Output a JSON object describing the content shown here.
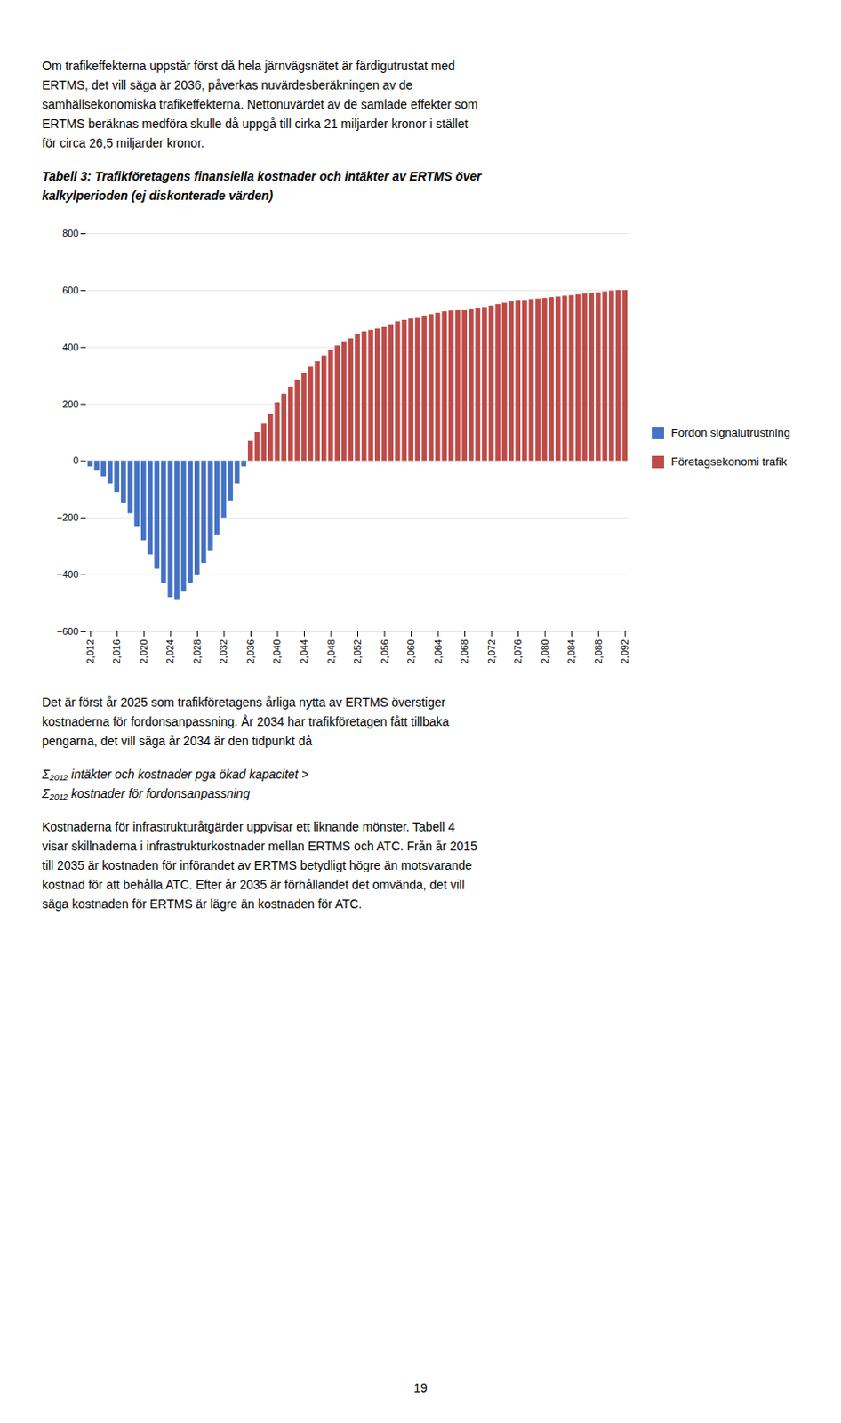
{
  "chart_data": {
    "type": "bar",
    "title": [
      "Tabell 3: Trafikföretagens finansiella kostnader och intäkter av ERTMS över",
      "kalkylperioden (ej diskonterade värden)"
    ],
    "annotations": [
      [
        "Om trafikeffekterna uppstår först då hela järnvägsnätet är färdigutrustat med",
        "ERTMS, det vill säga är 2036, påverkas nuvärdesberäkningen av de",
        "samhällsekonomiska trafikeffekterna. Nettonuvärdet av de samlade effekter som",
        "ERTMS beräknas medföra skulle då uppgå till cirka 21 miljarder kronor i stället",
        "för circa 26,5 miljarder kronor."
      ],
      [
        "Det är först år 2025 som trafikföretagens årliga nytta av ERTMS överstiger",
        "kostnaderna för fordonsanpassning. År 2034 har trafikföretagen fått tillbaka",
        "pengarna, det vill säga år 2034 är den tidpunkt då"
      ],
      [
        "Σ₂₀₁₂ intäkter och kostnader pga ökad kapacitet >",
        "Σ₂₀₁₂ kostnader för fordonsanpassning"
      ],
      [
        "Kostnaderna för infrastrukturåtgärder uppvisar ett liknande mönster. Tabell 4",
        "visar skillnaderna i infrastrukturkostnader mellan ERTMS och ATC. Från år 2015",
        "till 2035 är kostnaden för införandet av ERTMS betydligt högre än motsvarande",
        "kostnad för att behålla ATC. Efter år 2035 är förhållandet det omvända, det vill",
        "säga kostnaden för ERTMS är lägre än kostnaden för ATC."
      ],
      [
        "19"
      ]
    ],
    "categories": [
      2012,
      null,
      null,
      null,
      2016,
      null,
      null,
      null,
      2020,
      null,
      null,
      null,
      2024,
      null,
      null,
      null,
      2028,
      null,
      null,
      null,
      2032,
      null,
      null,
      null,
      2036,
      null,
      null,
      null,
      2040,
      null,
      null,
      null,
      2044,
      null,
      null,
      null,
      2048,
      null,
      null,
      null,
      2052,
      null,
      null,
      null,
      2056,
      null,
      null,
      null,
      2060,
      null,
      null,
      null,
      2064,
      null,
      null,
      null,
      2068,
      null,
      null,
      null,
      2072,
      null,
      null,
      null,
      2076,
      null,
      null,
      null,
      2080,
      null,
      null,
      null,
      2084,
      null,
      null,
      null,
      2088,
      null,
      null,
      null,
      2092
    ],
    "series": [
      {
        "name": "Fordon signalutrustning",
        "color": "#4472C4",
        "values": [
          -20,
          -35,
          -55,
          -80,
          -110,
          -150,
          -185,
          -230,
          -280,
          -330,
          -380,
          -430,
          -480,
          -490,
          -460,
          -430,
          -400,
          -360,
          -315,
          -260,
          -200,
          -140,
          -80,
          -20,
          0,
          0,
          0,
          0,
          0,
          0,
          0,
          0,
          0,
          0,
          0,
          0,
          0,
          0,
          0,
          0,
          0,
          0,
          0,
          0,
          0,
          0,
          0,
          0,
          0,
          0,
          0,
          0,
          0,
          0,
          0,
          0,
          0,
          0,
          0,
          0,
          0,
          0,
          0,
          0,
          0,
          0,
          0,
          0,
          0,
          0,
          0,
          0,
          0,
          0,
          0,
          0,
          0,
          0,
          0,
          0,
          0
        ]
      },
      {
        "name": "Företagsekonomi trafik",
        "color": "#BE4B48",
        "values": [
          0,
          0,
          0,
          0,
          0,
          0,
          0,
          0,
          0,
          0,
          0,
          0,
          0,
          0,
          0,
          0,
          0,
          0,
          0,
          0,
          0,
          0,
          0,
          0,
          70,
          100,
          130,
          165,
          205,
          235,
          260,
          285,
          310,
          330,
          350,
          370,
          390,
          405,
          420,
          430,
          445,
          455,
          460,
          465,
          470,
          480,
          490,
          495,
          500,
          505,
          510,
          515,
          520,
          525,
          528,
          530,
          532,
          535,
          538,
          540,
          545,
          550,
          555,
          560,
          565,
          565,
          568,
          570,
          572,
          575,
          577,
          580,
          582,
          585,
          588,
          590,
          592,
          595,
          598,
          600,
          600
        ]
      }
    ],
    "ylim": [
      -600,
      800
    ],
    "yticks": [
      -600,
      -400,
      -200,
      0,
      200,
      400,
      600,
      800
    ],
    "grid": true,
    "legend": "right"
  }
}
